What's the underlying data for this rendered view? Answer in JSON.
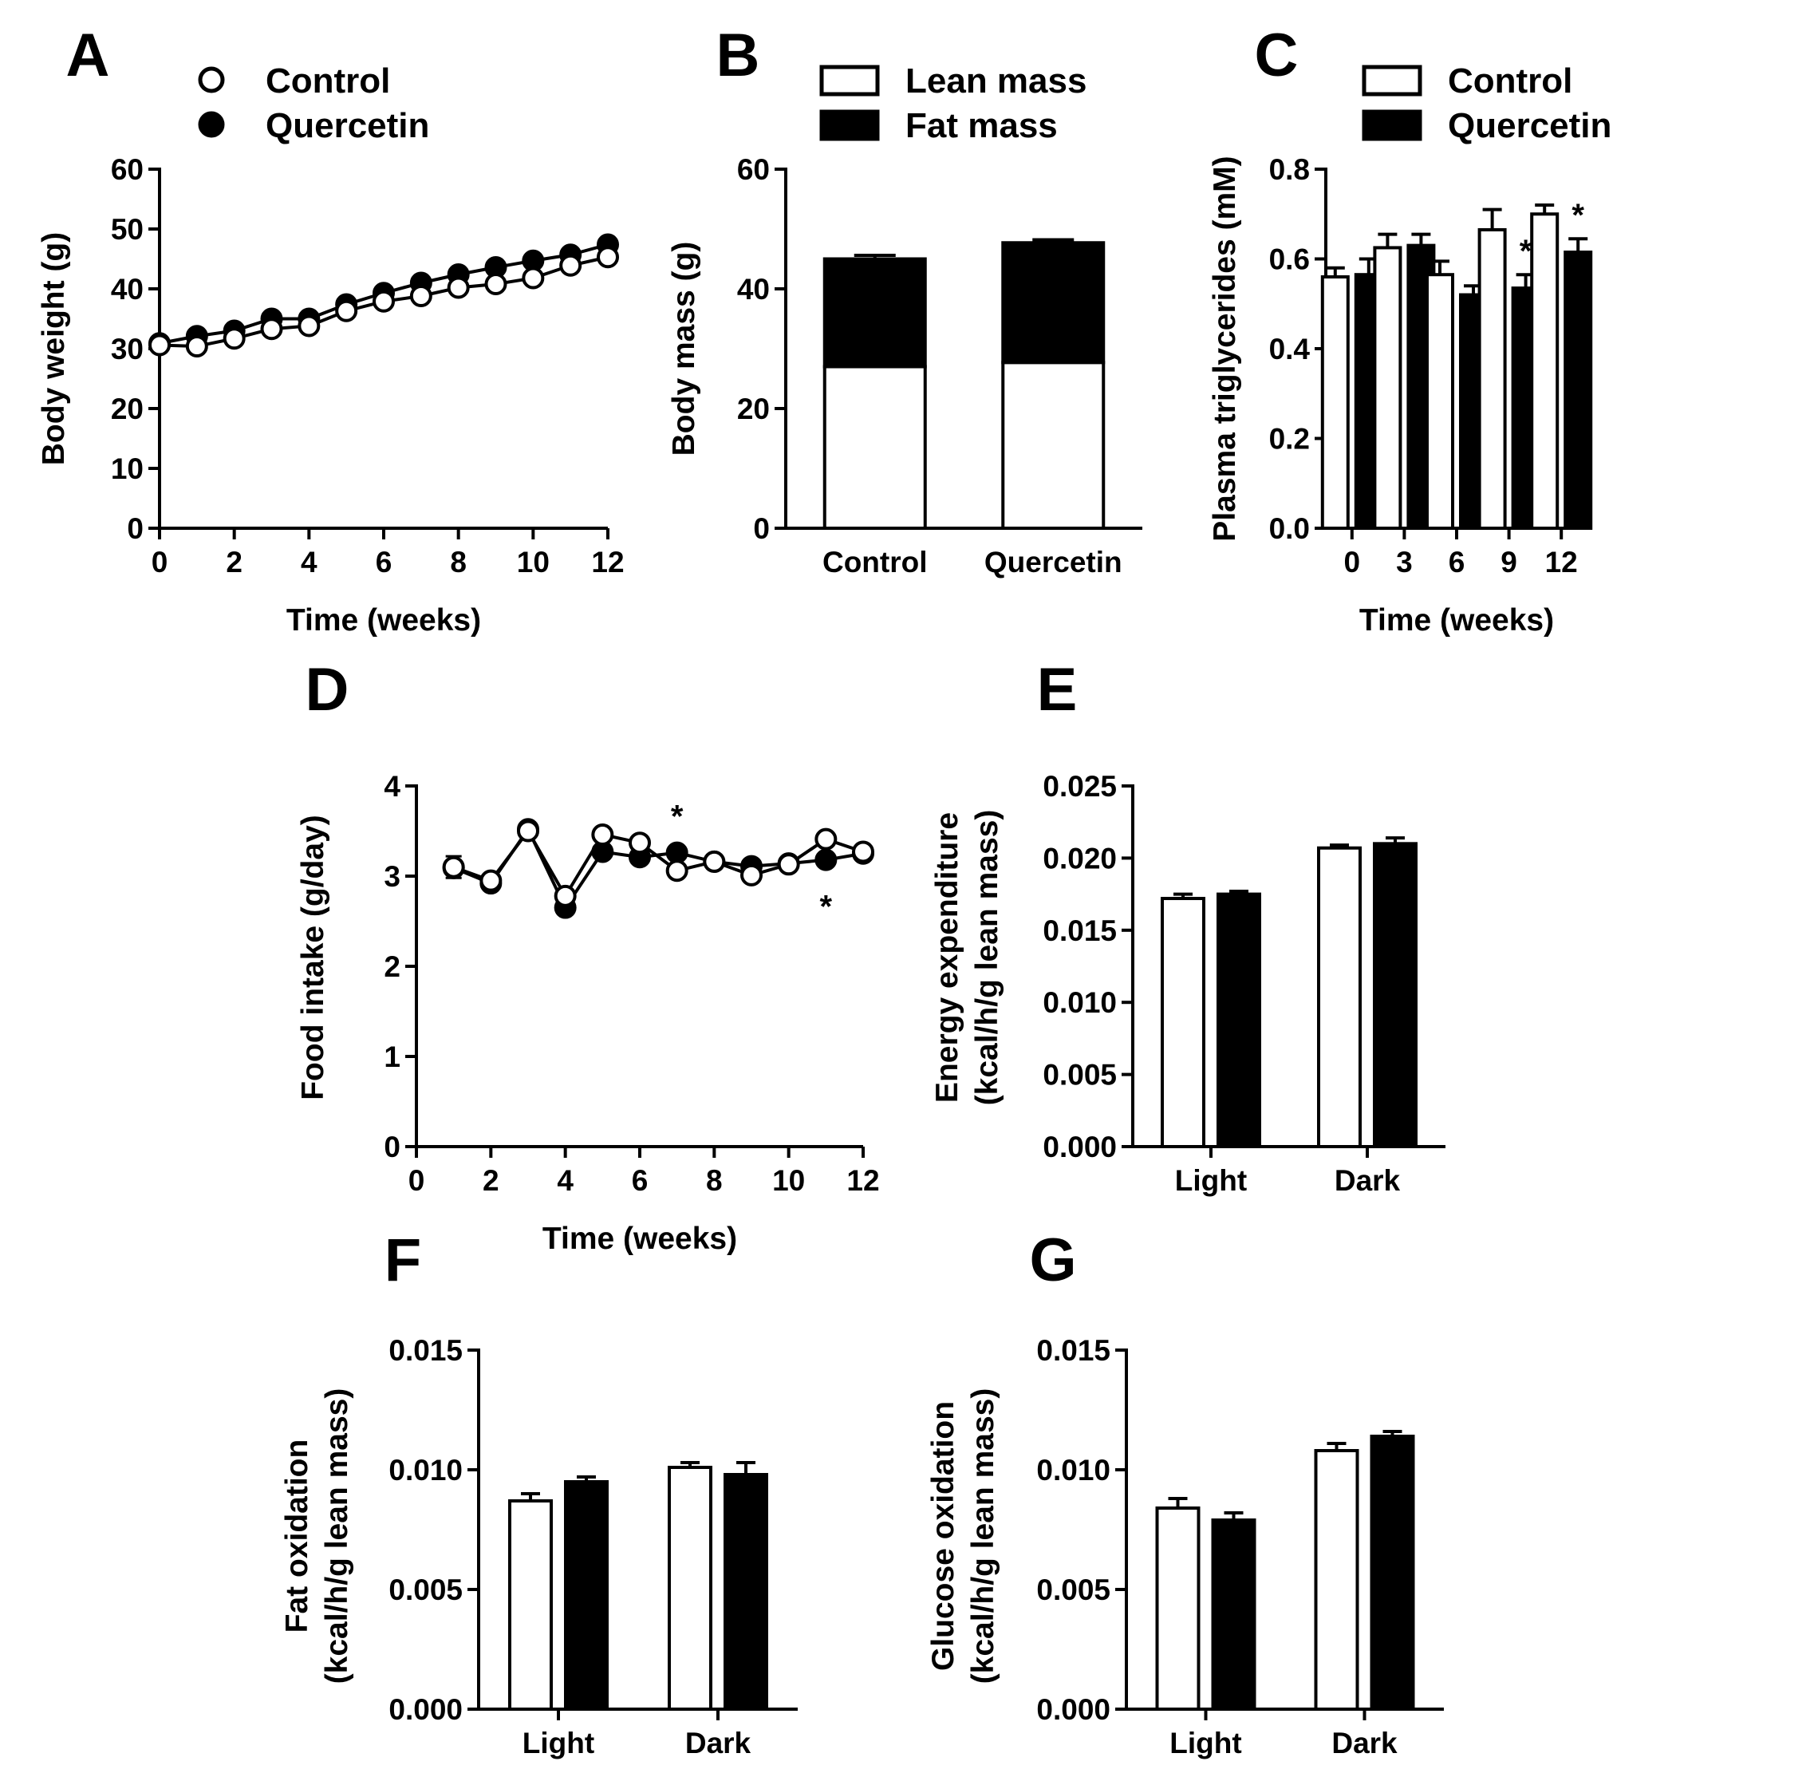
{
  "colors": {
    "control": "#ffffff",
    "quercetin": "#000000",
    "ink": "#000000"
  },
  "chart_data": [
    {
      "id": "A",
      "panel_label": "A",
      "type": "line",
      "xlabel": "Time (weeks)",
      "ylabel": "Body weight (g)",
      "xlim": [
        0,
        12
      ],
      "ylim": [
        0,
        60
      ],
      "xticks": [
        0,
        2,
        4,
        6,
        8,
        10,
        12
      ],
      "yticks": [
        0,
        10,
        20,
        30,
        40,
        50,
        60
      ],
      "legend": {
        "placement": "top",
        "entries": [
          "Control",
          "Quercetin"
        ]
      },
      "x": [
        0,
        1,
        2,
        3,
        4,
        5,
        6,
        7,
        8,
        9,
        10,
        11,
        12
      ],
      "series": [
        {
          "name": "Control",
          "marker": "open-circle",
          "values": [
            30.6,
            30.4,
            31.7,
            33.3,
            33.8,
            36.3,
            37.9,
            38.8,
            40.2,
            40.8,
            41.8,
            43.9,
            45.3
          ]
        },
        {
          "name": "Quercetin",
          "marker": "filled-circle",
          "values": [
            30.9,
            32.1,
            33.0,
            35.0,
            35.0,
            37.4,
            39.3,
            41.0,
            42.4,
            43.6,
            44.7,
            45.7,
            47.4
          ]
        }
      ]
    },
    {
      "id": "B",
      "panel_label": "B",
      "type": "bar",
      "stacked": true,
      "xlabel": "",
      "ylabel": "Body mass (g)",
      "ylim": [
        0,
        60
      ],
      "yticks": [
        0,
        20,
        40,
        60
      ],
      "categories": [
        "Control",
        "Quercetin"
      ],
      "legend": {
        "placement": "top",
        "entries": [
          "Lean mass",
          "Fat mass"
        ]
      },
      "series": [
        {
          "name": "Lean mass",
          "fill": "white",
          "values": [
            27.0,
            27.7
          ],
          "errors": [
            0.7,
            0.7
          ]
        },
        {
          "name": "Fat mass",
          "fill": "black",
          "values": [
            18.0,
            20.0
          ],
          "errors": [
            0.6,
            0.5
          ]
        }
      ]
    },
    {
      "id": "C",
      "panel_label": "C",
      "type": "bar",
      "xlabel": "Time (weeks)",
      "ylabel": "Plasma triglycerides (mM)",
      "ylim": [
        0,
        0.8
      ],
      "yticks": [
        "0.0",
        "0.2",
        "0.4",
        "0.6",
        "0.8"
      ],
      "ytick_values": [
        0,
        0.2,
        0.4,
        0.6,
        0.8
      ],
      "categories": [
        "0",
        "3",
        "6",
        "9",
        "12"
      ],
      "legend": {
        "placement": "top",
        "entries": [
          "Control",
          "Quercetin"
        ]
      },
      "series": [
        {
          "name": "Control",
          "fill": "white",
          "values": [
            0.56,
            0.625,
            0.565,
            0.665,
            0.7
          ],
          "errors": [
            0.02,
            0.03,
            0.03,
            0.045,
            0.02
          ]
        },
        {
          "name": "Quercetin",
          "fill": "black",
          "values": [
            0.565,
            0.63,
            0.52,
            0.535,
            0.615
          ],
          "errors": [
            0.035,
            0.025,
            0.02,
            0.03,
            0.03
          ]
        }
      ],
      "annotations": [
        {
          "text": "*",
          "category": "9",
          "series": "Quercetin"
        },
        {
          "text": "*",
          "category": "12",
          "series": "Quercetin"
        }
      ]
    },
    {
      "id": "D",
      "panel_label": "D",
      "type": "line",
      "xlabel": "Time (weeks)",
      "ylabel": "Food intake (g/day)",
      "xlim": [
        0,
        12
      ],
      "ylim": [
        0,
        4
      ],
      "xticks": [
        0,
        2,
        4,
        6,
        8,
        10,
        12
      ],
      "yticks": [
        0,
        1,
        2,
        3,
        4
      ],
      "x": [
        1,
        2,
        3,
        4,
        5,
        6,
        7,
        8,
        9,
        10,
        11,
        12
      ],
      "series": [
        {
          "name": "Control",
          "marker": "open-circle",
          "values": [
            3.1,
            2.95,
            3.5,
            2.78,
            3.46,
            3.37,
            3.06,
            3.16,
            3.01,
            3.13,
            3.41,
            3.27
          ],
          "errors": [
            0.12,
            0.03,
            0.03,
            0.03,
            0.03,
            0.03,
            0.03,
            0.03,
            0.03,
            0.03,
            0.03,
            0.03
          ]
        },
        {
          "name": "Quercetin",
          "marker": "filled-circle",
          "values": [
            3.09,
            2.92,
            3.52,
            2.65,
            3.27,
            3.21,
            3.26,
            3.16,
            3.11,
            3.14,
            3.18,
            3.25
          ]
        }
      ],
      "annotations": [
        {
          "text": "*",
          "x": 7,
          "position": "above"
        },
        {
          "text": "*",
          "x": 11,
          "position": "below"
        }
      ]
    },
    {
      "id": "E",
      "panel_label": "E",
      "type": "bar",
      "xlabel": "",
      "ylabel": "Energy expenditure",
      "ylabel2": "(kcal/h/g lean mass)",
      "ylim": [
        0,
        0.025
      ],
      "yticks": [
        "0.000",
        "0.005",
        "0.010",
        "0.015",
        "0.020",
        "0.025"
      ],
      "ytick_values": [
        0,
        0.005,
        0.01,
        0.015,
        0.02,
        0.025
      ],
      "categories": [
        "Light",
        "Dark"
      ],
      "series": [
        {
          "name": "Control",
          "fill": "white",
          "values": [
            0.0172,
            0.0207
          ],
          "errors": [
            0.0003,
            0.0002
          ]
        },
        {
          "name": "Quercetin",
          "fill": "black",
          "values": [
            0.0175,
            0.021
          ],
          "errors": [
            0.0002,
            0.0004
          ]
        }
      ]
    },
    {
      "id": "F",
      "panel_label": "F",
      "type": "bar",
      "xlabel": "",
      "ylabel": "Fat oxidation",
      "ylabel2": "(kcal/h/g lean mass)",
      "ylim": [
        0,
        0.015
      ],
      "yticks": [
        "0.000",
        "0.005",
        "0.010",
        "0.015"
      ],
      "ytick_values": [
        0,
        0.005,
        0.01,
        0.015
      ],
      "categories": [
        "Light",
        "Dark"
      ],
      "series": [
        {
          "name": "Control",
          "fill": "white",
          "values": [
            0.0087,
            0.0101
          ],
          "errors": [
            0.0003,
            0.0002
          ]
        },
        {
          "name": "Quercetin",
          "fill": "black",
          "values": [
            0.0095,
            0.0098
          ],
          "errors": [
            0.0002,
            0.0005
          ]
        }
      ]
    },
    {
      "id": "G",
      "panel_label": "G",
      "type": "bar",
      "xlabel": "",
      "ylabel": "Glucose oxidation",
      "ylabel2": "(kcal/h/g lean mass)",
      "ylim": [
        0,
        0.015
      ],
      "yticks": [
        "0.000",
        "0.005",
        "0.010",
        "0.015"
      ],
      "ytick_values": [
        0,
        0.005,
        0.01,
        0.015
      ],
      "categories": [
        "Light",
        "Dark"
      ],
      "series": [
        {
          "name": "Control",
          "fill": "white",
          "values": [
            0.0084,
            0.0108
          ],
          "errors": [
            0.0004,
            0.0003
          ]
        },
        {
          "name": "Quercetin",
          "fill": "black",
          "values": [
            0.0079,
            0.0114
          ],
          "errors": [
            0.0003,
            0.0002
          ]
        }
      ]
    }
  ]
}
